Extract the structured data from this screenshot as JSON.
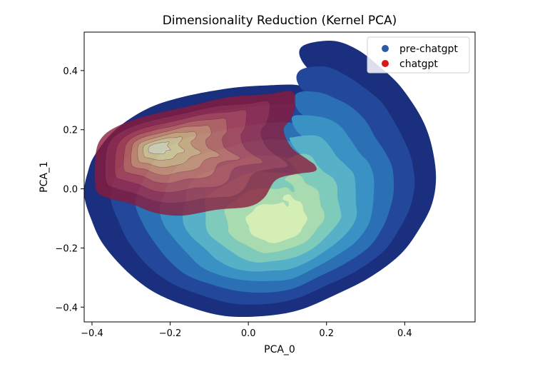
{
  "chart_data": {
    "type": "kde-contour",
    "title": "Dimensionality Reduction (Kernel PCA)",
    "xlabel": "PCA_0",
    "ylabel": "PCA_1",
    "xlim": [
      -0.42,
      0.58
    ],
    "ylim": [
      -0.45,
      0.53
    ],
    "xticks": [
      {
        "value": -0.4,
        "label": "−0.4"
      },
      {
        "value": -0.2,
        "label": "−0.2"
      },
      {
        "value": 0.0,
        "label": "0.0"
      },
      {
        "value": 0.2,
        "label": "0.2"
      },
      {
        "value": 0.4,
        "label": "0.4"
      }
    ],
    "yticks": [
      {
        "value": 0.4,
        "label": "0.4"
      },
      {
        "value": 0.2,
        "label": "0.2"
      },
      {
        "value": 0.0,
        "label": "0.0"
      },
      {
        "value": -0.2,
        "label": "−0.2"
      },
      {
        "value": -0.4,
        "label": "−0.4"
      }
    ],
    "grid": false,
    "legend": {
      "position": "top-right",
      "entries": [
        {
          "label": "pre-chatgpt",
          "color": "#2b5aa8"
        },
        {
          "label": "chatgpt",
          "color": "#d7191c"
        }
      ]
    },
    "series": [
      {
        "name": "pre-chatgpt",
        "colormap": [
          "#1b2f7f",
          "#22479b",
          "#2b6fb5",
          "#3a92c4",
          "#55b0c8",
          "#7ecbbb",
          "#a8dcb0",
          "#d4eeb5"
        ],
        "density_peak": [
          0.08,
          -0.13
        ],
        "outline": [
          [
            -0.42,
            -0.02
          ],
          [
            -0.41,
            0.06
          ],
          [
            -0.39,
            0.12
          ],
          [
            -0.34,
            0.2
          ],
          [
            -0.26,
            0.27
          ],
          [
            -0.17,
            0.31
          ],
          [
            -0.05,
            0.34
          ],
          [
            0.05,
            0.35
          ],
          [
            0.13,
            0.35
          ],
          [
            0.16,
            0.32
          ],
          [
            0.2,
            0.3
          ],
          [
            0.22,
            0.32
          ],
          [
            0.2,
            0.36
          ],
          [
            0.15,
            0.41
          ],
          [
            0.13,
            0.46
          ],
          [
            0.15,
            0.49
          ],
          [
            0.22,
            0.5
          ],
          [
            0.28,
            0.47
          ],
          [
            0.33,
            0.42
          ],
          [
            0.38,
            0.36
          ],
          [
            0.42,
            0.29
          ],
          [
            0.45,
            0.22
          ],
          [
            0.47,
            0.14
          ],
          [
            0.48,
            0.04
          ],
          [
            0.47,
            -0.05
          ],
          [
            0.44,
            -0.13
          ],
          [
            0.39,
            -0.22
          ],
          [
            0.31,
            -0.3
          ],
          [
            0.22,
            -0.36
          ],
          [
            0.13,
            -0.41
          ],
          [
            0.04,
            -0.43
          ],
          [
            -0.06,
            -0.43
          ],
          [
            -0.15,
            -0.4
          ],
          [
            -0.24,
            -0.35
          ],
          [
            -0.31,
            -0.28
          ],
          [
            -0.37,
            -0.19
          ],
          [
            -0.4,
            -0.11
          ]
        ]
      },
      {
        "name": "chatgpt",
        "colormap": [
          "#8b1a3a",
          "#a52a45",
          "#c0444d",
          "#d56a58",
          "#e59467",
          "#eebc78",
          "#f5dd90",
          "#f7f0b8"
        ],
        "density_peak": [
          -0.24,
          0.14
        ],
        "outline": [
          [
            -0.39,
            0.0
          ],
          [
            -0.39,
            0.12
          ],
          [
            -0.37,
            0.18
          ],
          [
            -0.32,
            0.22
          ],
          [
            -0.25,
            0.25
          ],
          [
            -0.15,
            0.28
          ],
          [
            -0.05,
            0.31
          ],
          [
            0.05,
            0.32
          ],
          [
            0.11,
            0.33
          ],
          [
            0.12,
            0.29
          ],
          [
            0.11,
            0.24
          ],
          [
            0.09,
            0.2
          ],
          [
            0.11,
            0.14
          ],
          [
            0.15,
            0.1
          ],
          [
            0.17,
            0.08
          ],
          [
            0.17,
            0.06
          ],
          [
            0.12,
            0.05
          ],
          [
            0.07,
            0.03
          ],
          [
            0.04,
            -0.03
          ],
          [
            0.0,
            -0.06
          ],
          [
            -0.08,
            -0.07
          ],
          [
            -0.17,
            -0.09
          ],
          [
            -0.24,
            -0.08
          ],
          [
            -0.3,
            -0.05
          ],
          [
            -0.36,
            -0.03
          ]
        ]
      }
    ]
  }
}
